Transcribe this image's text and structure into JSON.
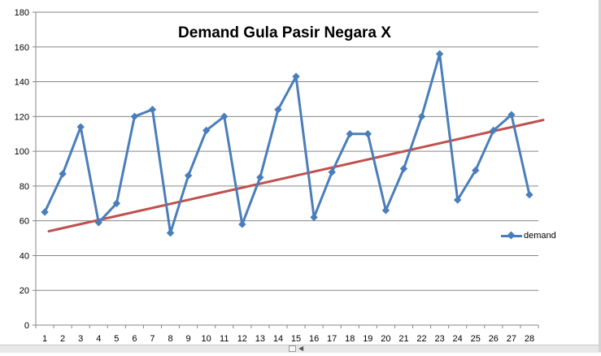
{
  "chart_data": {
    "type": "line",
    "title": "Demand Gula Pasir Negara X",
    "categories": [
      "1",
      "2",
      "3",
      "4",
      "5",
      "6",
      "7",
      "8",
      "9",
      "10",
      "11",
      "12",
      "13",
      "14",
      "15",
      "16",
      "17",
      "18",
      "19",
      "20",
      "21",
      "22",
      "23",
      "24",
      "25",
      "26",
      "27",
      "28"
    ],
    "series": [
      {
        "name": "demand",
        "values": [
          65,
          87,
          114,
          59,
          70,
          120,
          124,
          53,
          86,
          112,
          120,
          58,
          85,
          124,
          143,
          62,
          88,
          110,
          110,
          66,
          90,
          120,
          156,
          72,
          89,
          112,
          121,
          75
        ]
      }
    ],
    "trendline": {
      "start": 54,
      "end": 118
    },
    "ylim": [
      0,
      180
    ],
    "yticks": [
      0,
      20,
      40,
      60,
      80,
      100,
      120,
      140,
      160,
      180
    ],
    "grid": true,
    "legend_position": "right",
    "colors": {
      "series": "#4a7ebb",
      "trendline": "#c0504d",
      "grid": "#868686"
    }
  }
}
